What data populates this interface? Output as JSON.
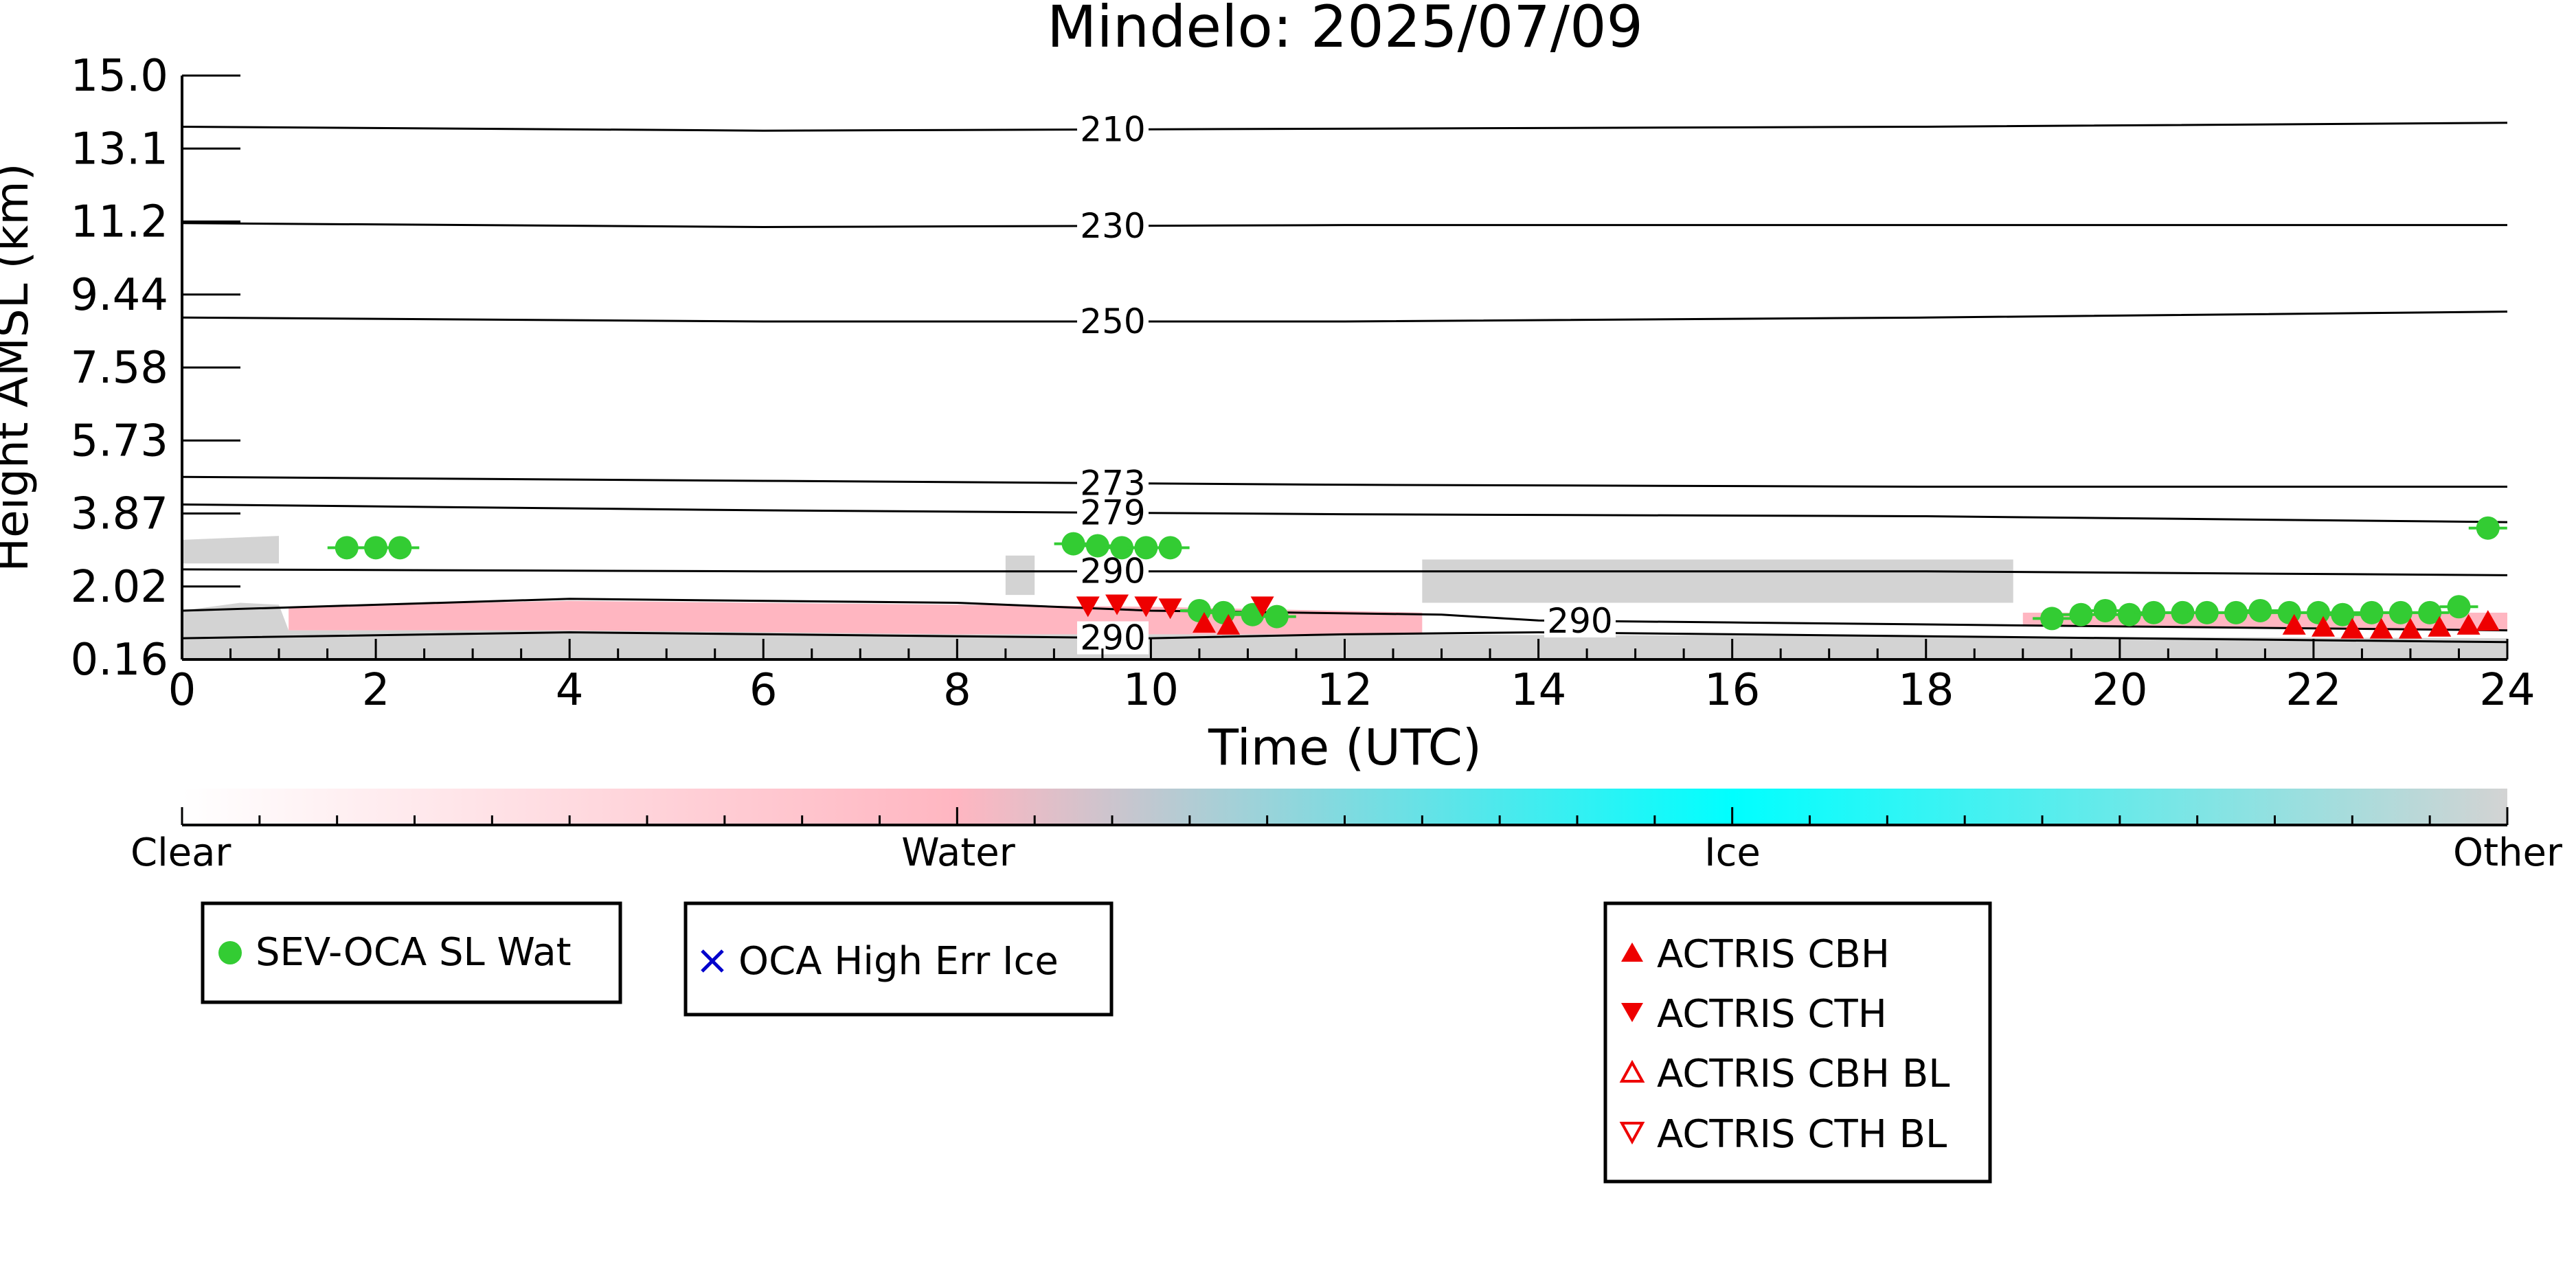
{
  "chart_data": {
    "type": "scatter",
    "title": "Mindelo: 2025/07/09",
    "xlabel": "Time (UTC)",
    "ylabel": "Height AMSL (km)",
    "xlim": [
      0,
      24
    ],
    "ylim": [
      0.16,
      15.0
    ],
    "x_ticks": [
      "0",
      "2",
      "4",
      "6",
      "8",
      "10",
      "12",
      "14",
      "16",
      "18",
      "20",
      "22",
      "24"
    ],
    "y_ticks": [
      "0.16",
      "2.02",
      "3.87",
      "5.73",
      "7.58",
      "9.44",
      "11.2",
      "13.1",
      "15.0"
    ],
    "grid": false,
    "colorbar": {
      "labels": [
        "Clear",
        "Water",
        "Ice",
        "Other"
      ],
      "colors": [
        "#ffffff",
        "#ffb6c1",
        "#00ffff",
        "#d3d3d3"
      ]
    },
    "contours": [
      {
        "label": "210",
        "points": [
          [
            0,
            13.7
          ],
          [
            6,
            13.6
          ],
          [
            12,
            13.65
          ],
          [
            18,
            13.7
          ],
          [
            24,
            13.8
          ]
        ]
      },
      {
        "label": "230",
        "points": [
          [
            0,
            11.25
          ],
          [
            6,
            11.15
          ],
          [
            12,
            11.2
          ],
          [
            18,
            11.2
          ],
          [
            24,
            11.2
          ]
        ]
      },
      {
        "label": "250",
        "points": [
          [
            0,
            8.85
          ],
          [
            6,
            8.75
          ],
          [
            12,
            8.75
          ],
          [
            18,
            8.85
          ],
          [
            24,
            9.0
          ]
        ]
      },
      {
        "label": "273",
        "points": [
          [
            0,
            4.8
          ],
          [
            6,
            4.7
          ],
          [
            12,
            4.6
          ],
          [
            18,
            4.55
          ],
          [
            24,
            4.55
          ]
        ]
      },
      {
        "label": "279",
        "points": [
          [
            0,
            4.1
          ],
          [
            6,
            3.95
          ],
          [
            12,
            3.85
          ],
          [
            18,
            3.8
          ],
          [
            24,
            3.65
          ]
        ]
      },
      {
        "label": "290",
        "points": [
          [
            0,
            2.45
          ],
          [
            6,
            2.4
          ],
          [
            12,
            2.4
          ],
          [
            18,
            2.4
          ],
          [
            24,
            2.3
          ]
        ]
      },
      {
        "label": "290",
        "points": [
          [
            0,
            1.4
          ],
          [
            4,
            1.7
          ],
          [
            8,
            1.6
          ],
          [
            10,
            1.4
          ],
          [
            13,
            1.3
          ],
          [
            14,
            1.15
          ],
          [
            16,
            1.1
          ],
          [
            20,
            1.0
          ],
          [
            24,
            0.9
          ]
        ]
      },
      {
        "label": "290",
        "points": [
          [
            0,
            0.7
          ],
          [
            4,
            0.85
          ],
          [
            8,
            0.75
          ],
          [
            10,
            0.7
          ],
          [
            12,
            0.8
          ],
          [
            14,
            0.85
          ],
          [
            18,
            0.75
          ],
          [
            24,
            0.6
          ]
        ]
      }
    ],
    "cloud_regions": [
      {
        "phase": "Other",
        "color": "#d3d3d3",
        "points": [
          [
            0,
            0.16
          ],
          [
            0,
            1.4
          ],
          [
            0.6,
            1.6
          ],
          [
            1.0,
            1.55
          ],
          [
            1.1,
            0.9
          ],
          [
            4,
            0.9
          ],
          [
            8,
            0.8
          ],
          [
            12,
            0.8
          ],
          [
            24,
            0.7
          ],
          [
            24,
            0.16
          ]
        ]
      },
      {
        "phase": "Other",
        "color": "#d3d3d3",
        "points": [
          [
            0,
            2.6
          ],
          [
            0,
            3.2
          ],
          [
            1.0,
            3.3
          ],
          [
            1.0,
            2.6
          ]
        ]
      },
      {
        "phase": "Other",
        "color": "#d3d3d3",
        "points": [
          [
            8.5,
            1.8
          ],
          [
            8.5,
            2.8
          ],
          [
            8.8,
            2.8
          ],
          [
            8.8,
            1.8
          ]
        ]
      },
      {
        "phase": "Other",
        "color": "#d3d3d3",
        "points": [
          [
            12.8,
            1.6
          ],
          [
            12.8,
            2.7
          ],
          [
            18.9,
            2.7
          ],
          [
            18.9,
            1.6
          ]
        ]
      },
      {
        "phase": "Water",
        "color": "#ffb6c1",
        "points": [
          [
            1.1,
            0.9
          ],
          [
            1.1,
            1.5
          ],
          [
            4,
            1.65
          ],
          [
            8,
            1.55
          ],
          [
            10,
            1.5
          ],
          [
            12.8,
            1.35
          ],
          [
            12.8,
            0.8
          ],
          [
            8,
            0.8
          ],
          [
            4,
            0.9
          ]
        ]
      },
      {
        "phase": "Water",
        "color": "#ffb6c1",
        "points": [
          [
            19,
            1.0
          ],
          [
            19,
            1.35
          ],
          [
            24,
            1.35
          ],
          [
            24,
            0.9
          ]
        ]
      }
    ],
    "series": [
      {
        "name": "SEV-OCA SL Wat",
        "marker": "circle",
        "color": "#33cc33",
        "x": [
          1.7,
          2.0,
          2.25,
          9.2,
          9.45,
          9.7,
          9.95,
          10.2,
          10.5,
          10.75,
          11.05,
          11.3,
          19.3,
          19.6,
          19.85,
          20.1,
          20.35,
          20.65,
          20.9,
          21.2,
          21.45,
          21.75,
          22.05,
          22.3,
          22.6,
          22.9,
          23.2,
          23.5,
          23.8
        ],
        "y": [
          3.0,
          3.0,
          3.0,
          3.1,
          3.05,
          3.0,
          3.0,
          3.0,
          1.4,
          1.35,
          1.3,
          1.25,
          1.2,
          1.3,
          1.4,
          1.3,
          1.35,
          1.35,
          1.35,
          1.35,
          1.4,
          1.35,
          1.35,
          1.3,
          1.35,
          1.35,
          1.35,
          1.5,
          3.5
        ]
      },
      {
        "name": "OCA High Err Ice",
        "marker": "x",
        "color": "#0000cc",
        "x": [],
        "y": []
      },
      {
        "name": "ACTRIS CBH",
        "marker": "triangle-up",
        "color": "#ee0000",
        "x": [
          10.55,
          10.8,
          21.8,
          22.1,
          22.4,
          22.7,
          23.0,
          23.3,
          23.6,
          23.8
        ],
        "y": [
          1.05,
          1.0,
          1.0,
          0.95,
          0.9,
          0.9,
          0.9,
          0.95,
          1.0,
          1.1
        ]
      },
      {
        "name": "ACTRIS CTH",
        "marker": "triangle-down",
        "color": "#ee0000",
        "x": [
          9.35,
          9.65,
          9.95,
          10.2,
          11.15
        ],
        "y": [
          1.55,
          1.6,
          1.55,
          1.5,
          1.55
        ]
      },
      {
        "name": "ACTRIS CBH BL",
        "marker": "triangle-up-open",
        "color": "#ee0000",
        "x": [],
        "y": []
      },
      {
        "name": "ACTRIS CTH BL",
        "marker": "triangle-down-open",
        "color": "#ee0000",
        "x": [],
        "y": []
      }
    ],
    "legends": [
      {
        "entries": [
          "SEV-OCA SL Wat"
        ]
      },
      {
        "entries": [
          "OCA High Err Ice"
        ]
      },
      {
        "entries": [
          "ACTRIS CBH",
          "ACTRIS CTH",
          "ACTRIS CBH BL",
          "ACTRIS CTH BL"
        ]
      }
    ]
  }
}
